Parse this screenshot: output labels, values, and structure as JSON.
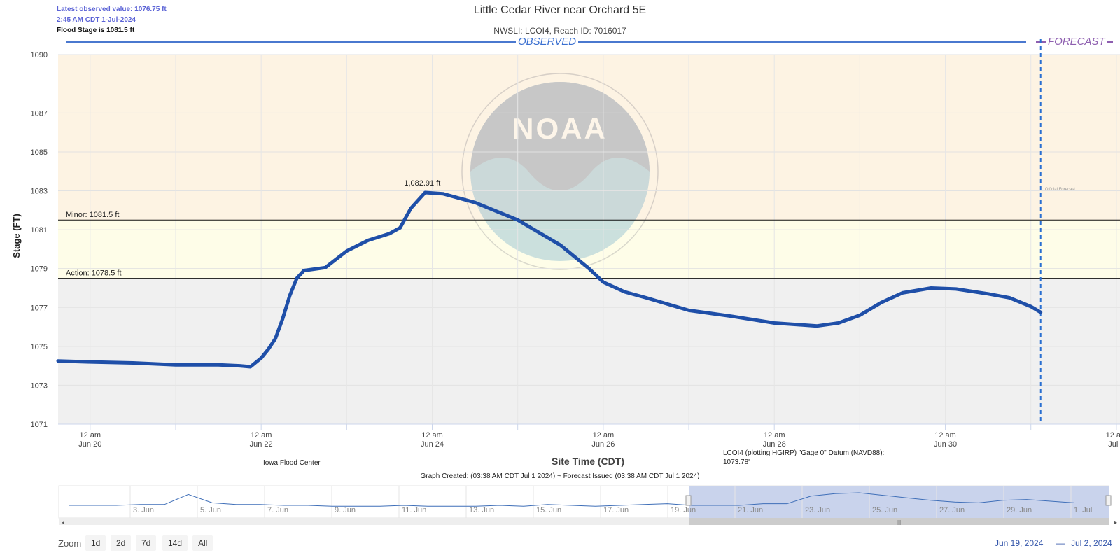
{
  "header": {
    "latest_value": "Latest observed value: 1076.75 ft",
    "latest_time": "2:45 AM CDT 1-Jul-2024",
    "flood_stage": "Flood Stage is 1081.5 ft",
    "title": "Little Cedar River near Orchard 5E",
    "subtitle": "NWSLI: LCOI4, Reach ID: 7016017",
    "observed_label": "OBSERVED",
    "forecast_label": "FORECAST"
  },
  "chart_data": {
    "type": "line",
    "title": "Little Cedar River near Orchard 5E",
    "subtitle": "NWSLI: LCOI4, Reach ID: 7016017",
    "xlabel": "Site Time (CDT)",
    "ylabel": "Stage (FT)",
    "ylim": [
      1071,
      1090
    ],
    "y_ticks": [
      1071,
      1073,
      1075,
      1077,
      1079,
      1081,
      1083,
      1085,
      1087,
      1090
    ],
    "xlim": [
      "2024-06-19T15:00",
      "2024-07-02T01:00"
    ],
    "x_ticks": [
      {
        "t": "2024-06-20T00:00",
        "line1": "12 am",
        "line2": "Jun 20"
      },
      {
        "t": "2024-06-22T00:00",
        "line1": "12 am",
        "line2": "Jun 22"
      },
      {
        "t": "2024-06-24T00:00",
        "line1": "12 am",
        "line2": "Jun 24"
      },
      {
        "t": "2024-06-26T00:00",
        "line1": "12 am",
        "line2": "Jun 26"
      },
      {
        "t": "2024-06-28T00:00",
        "line1": "12 am",
        "line2": "Jun 28"
      },
      {
        "t": "2024-06-30T00:00",
        "line1": "12 am",
        "line2": "Jun 30"
      },
      {
        "t": "2024-07-02T00:00",
        "line1": "12 am",
        "line2": "Jul 2"
      }
    ],
    "bands": [
      {
        "from": 1081.5,
        "to": 1090,
        "color": "#fdf3e3"
      },
      {
        "from": 1078.5,
        "to": 1081.5,
        "color": "#fefde8"
      },
      {
        "from": 1071,
        "to": 1078.5,
        "color": "#f0f0f0"
      }
    ],
    "thresholds": [
      {
        "label": "Minor: 1081.5 ft",
        "value": 1081.5
      },
      {
        "label": "Action: 1078.5 ft",
        "value": 1078.5
      }
    ],
    "forecast_start": "2024-07-01T02:45",
    "forecast_note": "Official Forecast",
    "peak_label": {
      "text": "1,082.91 ft",
      "t": "2024-06-23T22:00",
      "value": 1082.91
    },
    "series": [
      {
        "color": "#1f4fa8",
        "points": [
          [
            "2024-06-19T15:00",
            1074.25
          ],
          [
            "2024-06-20T00:00",
            1074.2
          ],
          [
            "2024-06-20T12:00",
            1074.15
          ],
          [
            "2024-06-21T00:00",
            1074.05
          ],
          [
            "2024-06-21T12:00",
            1074.05
          ],
          [
            "2024-06-21T18:00",
            1074.0
          ],
          [
            "2024-06-21T21:00",
            1073.95
          ],
          [
            "2024-06-22T00:00",
            1074.4
          ],
          [
            "2024-06-22T02:00",
            1074.85
          ],
          [
            "2024-06-22T04:00",
            1075.4
          ],
          [
            "2024-06-22T06:00",
            1076.4
          ],
          [
            "2024-06-22T08:00",
            1077.6
          ],
          [
            "2024-06-22T10:00",
            1078.5
          ],
          [
            "2024-06-22T12:00",
            1078.9
          ],
          [
            "2024-06-22T18:00",
            1079.05
          ],
          [
            "2024-06-23T00:00",
            1079.9
          ],
          [
            "2024-06-23T06:00",
            1080.45
          ],
          [
            "2024-06-23T12:00",
            1080.8
          ],
          [
            "2024-06-23T15:00",
            1081.1
          ],
          [
            "2024-06-23T18:00",
            1082.1
          ],
          [
            "2024-06-23T22:00",
            1082.91
          ],
          [
            "2024-06-24T03:00",
            1082.85
          ],
          [
            "2024-06-24T12:00",
            1082.4
          ],
          [
            "2024-06-25T00:00",
            1081.5
          ],
          [
            "2024-06-25T12:00",
            1080.2
          ],
          [
            "2024-06-25T20:00",
            1079.0
          ],
          [
            "2024-06-26T00:00",
            1078.3
          ],
          [
            "2024-06-26T06:00",
            1077.8
          ],
          [
            "2024-06-26T12:00",
            1077.5
          ],
          [
            "2024-06-27T00:00",
            1076.85
          ],
          [
            "2024-06-27T12:00",
            1076.55
          ],
          [
            "2024-06-28T00:00",
            1076.2
          ],
          [
            "2024-06-28T12:00",
            1076.05
          ],
          [
            "2024-06-28T18:00",
            1076.2
          ],
          [
            "2024-06-29T00:00",
            1076.6
          ],
          [
            "2024-06-29T06:00",
            1077.25
          ],
          [
            "2024-06-29T12:00",
            1077.75
          ],
          [
            "2024-06-29T20:00",
            1078.0
          ],
          [
            "2024-06-30T03:00",
            1077.95
          ],
          [
            "2024-06-30T12:00",
            1077.7
          ],
          [
            "2024-06-30T18:00",
            1077.5
          ],
          [
            "2024-07-01T00:00",
            1077.05
          ],
          [
            "2024-07-01T02:45",
            1076.75
          ]
        ]
      }
    ]
  },
  "footer": {
    "left_credit": "Iowa Flood Center",
    "datum_note_1": "LCOI4 (plotting HGIRP) \"Gage 0\" Datum (NAVD88):",
    "datum_note_2": "1073.78'",
    "graph_created": "Graph Created: (03:38 AM CDT Jul 1 2024) ~ Forecast Issued (03:38 AM CDT Jul 1 2024)"
  },
  "navigator": {
    "labels": [
      "3. Jun",
      "5. Jun",
      "7. Jun",
      "9. Jun",
      "11. Jun",
      "13. Jun",
      "15. Jun",
      "17. Jun",
      "19. Jun",
      "21. Jun",
      "23. Jun",
      "25. Jun",
      "27. Jun",
      "29. Jun",
      "1. Jul"
    ],
    "overview": [
      0.25,
      0.25,
      0.25,
      0.3,
      0.3,
      0.9,
      0.4,
      0.3,
      0.3,
      0.25,
      0.25,
      0.2,
      0.2,
      0.2,
      0.25,
      0.2,
      0.2,
      0.2,
      0.25,
      0.2,
      0.3,
      0.25,
      0.2,
      0.25,
      0.3,
      0.35,
      0.25,
      0.25,
      0.25,
      0.35,
      0.35,
      0.8,
      0.95,
      1.0,
      0.85,
      0.7,
      0.55,
      0.45,
      0.4,
      0.55,
      0.6,
      0.5,
      0.4
    ]
  },
  "zoom": {
    "label": "Zoom",
    "buttons": [
      "1d",
      "2d",
      "7d",
      "14d",
      "All"
    ],
    "range_from": "Jun 19, 2024",
    "range_sep": "—",
    "range_to": "Jul 2, 2024"
  }
}
